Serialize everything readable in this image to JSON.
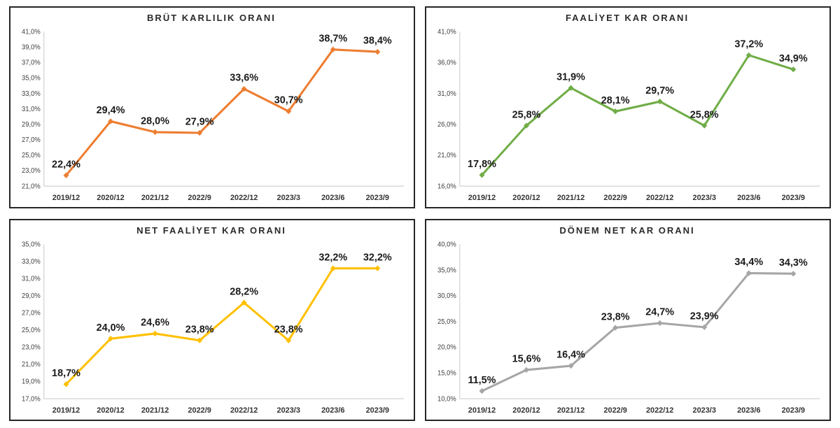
{
  "page": {
    "background_color": "#ffffff",
    "panel_border_color": "#262626",
    "axis_line_color": "#d6d6d6",
    "tick_label_color": "#404040",
    "category_label_color": "#333333",
    "data_label_color": "#1a1a1a"
  },
  "chart_data": [
    {
      "id": "brut-karlilik-orani",
      "type": "line",
      "title": "BRÜT KARLILIK ORANI",
      "categories": [
        "2019/12",
        "2020/12",
        "2021/12",
        "2022/9",
        "2022/12",
        "2023/3",
        "2023/6",
        "2023/9"
      ],
      "values": [
        22.4,
        29.4,
        28.0,
        27.9,
        33.6,
        30.7,
        38.7,
        38.4
      ],
      "labels": [
        "22,4%",
        "29,4%",
        "28,0%",
        "27,9%",
        "33,6%",
        "30,7%",
        "38,7%",
        "38,4%"
      ],
      "color": "#ED7D31",
      "ylim": [
        21,
        41
      ],
      "ystep": 2,
      "ytick_labels": [
        "41,0%",
        "39,0%",
        "37,0%",
        "35,0%",
        "33,0%",
        "31,0%",
        "29,0%",
        "27,0%",
        "25,0%",
        "23,0%",
        "21,0%"
      ],
      "xlabel": "",
      "ylabel": "",
      "grid": false,
      "legend": "none"
    },
    {
      "id": "faaliyet-kar-orani",
      "type": "line",
      "title": "FAALİYET KAR ORANI",
      "categories": [
        "2019/12",
        "2020/12",
        "2021/12",
        "2022/9",
        "2022/12",
        "2023/3",
        "2023/6",
        "2023/9"
      ],
      "values": [
        17.8,
        25.8,
        31.9,
        28.1,
        29.7,
        25.8,
        37.2,
        34.9
      ],
      "labels": [
        "17,8%",
        "25,8%",
        "31,9%",
        "28,1%",
        "29,7%",
        "25,8%",
        "37,2%",
        "34,9%"
      ],
      "color": "#70AD47",
      "ylim": [
        16,
        41
      ],
      "ystep": 5,
      "ytick_labels": [
        "41,0%",
        "36,0%",
        "31,0%",
        "26,0%",
        "21,0%",
        "16,0%"
      ],
      "xlabel": "",
      "ylabel": "",
      "grid": false,
      "legend": "none"
    },
    {
      "id": "net-faaliyet-kar-orani",
      "type": "line",
      "title": "NET FAALİYET KAR ORANI",
      "categories": [
        "2019/12",
        "2020/12",
        "2021/12",
        "2022/9",
        "2022/12",
        "2023/3",
        "2023/6",
        "2023/9"
      ],
      "values": [
        18.7,
        24.0,
        24.6,
        23.8,
        28.2,
        23.8,
        32.2,
        32.2
      ],
      "labels": [
        "18,7%",
        "24,0%",
        "24,6%",
        "23,8%",
        "28,2%",
        "23,8%",
        "32,2%",
        "32,2%"
      ],
      "color": "#FFC000",
      "ylim": [
        17,
        35
      ],
      "ystep": 2,
      "ytick_labels": [
        "35,0%",
        "33,0%",
        "31,0%",
        "29,0%",
        "27,0%",
        "25,0%",
        "23,0%",
        "21,0%",
        "19,0%",
        "17,0%"
      ],
      "xlabel": "",
      "ylabel": "",
      "grid": false,
      "legend": "none"
    },
    {
      "id": "donem-net-kar-orani",
      "type": "line",
      "title": "DÖNEM NET KAR ORANI",
      "categories": [
        "2019/12",
        "2020/12",
        "2021/12",
        "2022/9",
        "2022/12",
        "2023/3",
        "2023/6",
        "2023/9"
      ],
      "values": [
        11.5,
        15.6,
        16.4,
        23.8,
        24.7,
        23.9,
        34.4,
        34.3
      ],
      "labels": [
        "11,5%",
        "15,6%",
        "16,4%",
        "23,8%",
        "24,7%",
        "23,9%",
        "34,4%",
        "34,3%"
      ],
      "color": "#A6A6A6",
      "ylim": [
        10,
        40
      ],
      "ystep": 5,
      "ytick_labels": [
        "40,0%",
        "35,0%",
        "30,0%",
        "25,0%",
        "20,0%",
        "15,0%",
        "10,0%"
      ],
      "xlabel": "",
      "ylabel": "",
      "grid": false,
      "legend": "none"
    }
  ]
}
